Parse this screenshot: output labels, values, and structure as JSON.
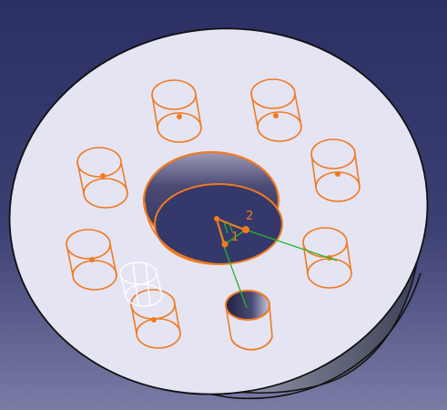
{
  "colors": {
    "bg_top": "#2e3166",
    "bg_bottom": "#6a6c9c",
    "face": "#e6e5f3",
    "side_light": "#c8c8d4",
    "side_dark": "#505468",
    "edge": "#111111",
    "sketch_orange": "#f07a20",
    "axis_green": "#27b52a",
    "ghost_white": "#ffffff",
    "hole_inner": "#3a3d62"
  },
  "viewport": {
    "background": "gradient-blue",
    "part": "circular-flange-with-holes"
  },
  "axis_labels": {
    "one": "1",
    "two": "2"
  }
}
